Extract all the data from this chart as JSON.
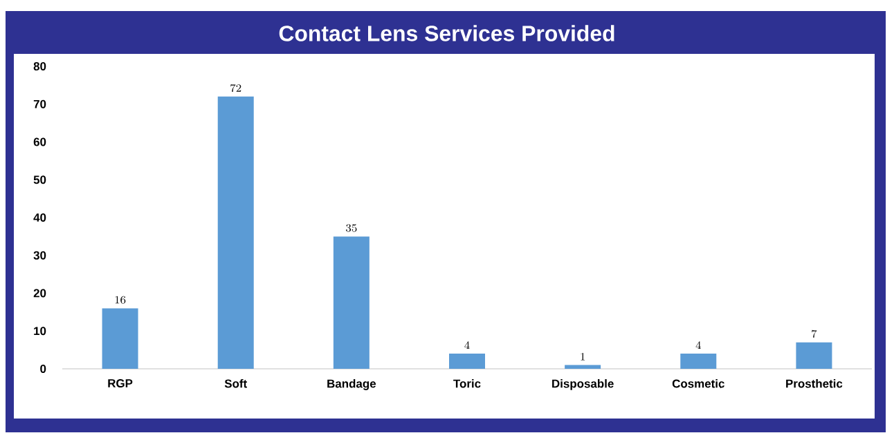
{
  "chart_data": {
    "type": "bar",
    "title": "Contact Lens Services Provided",
    "categories": [
      "RGP",
      "Soft",
      "Bandage",
      "Toric",
      "Disposable",
      "Cosmetic",
      "Prosthetic"
    ],
    "values": [
      16,
      72,
      35,
      4,
      1,
      4,
      7
    ],
    "color": "#5b9bd5",
    "ylim": [
      0,
      80
    ],
    "yticks": [
      0,
      10,
      20,
      30,
      40,
      50,
      60,
      70,
      80
    ],
    "data_labels": true
  }
}
